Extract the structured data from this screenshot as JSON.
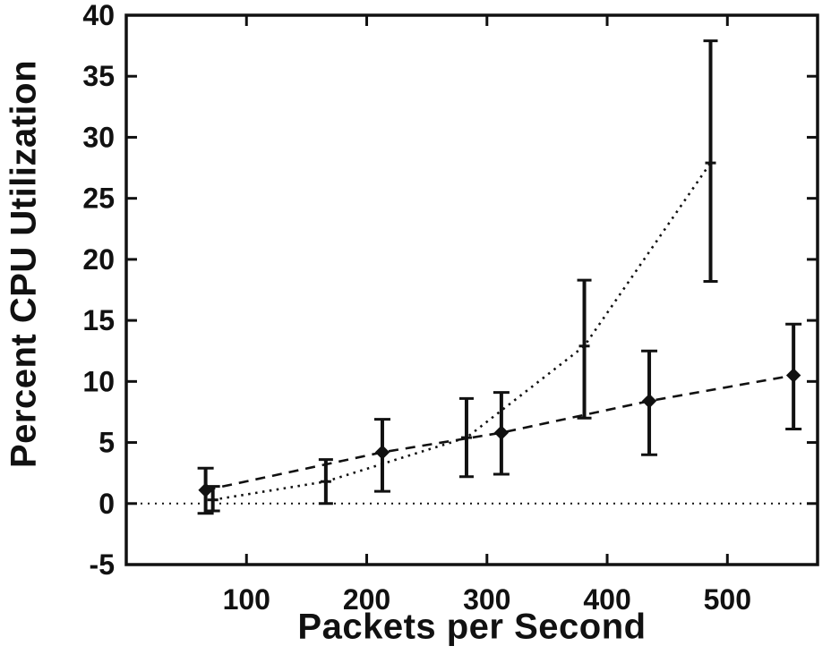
{
  "figure": {
    "background": "#ffffff",
    "ink_color": "#111111"
  },
  "chart_data": {
    "type": "line",
    "title": "",
    "xlabel": "Packets per Second",
    "ylabel": "Percent CPU Utilization",
    "xlim": [
      0,
      575
    ],
    "ylim": [
      -5,
      40
    ],
    "x_ticks": [
      100,
      200,
      300,
      400,
      500
    ],
    "y_ticks": [
      -5,
      0,
      5,
      10,
      15,
      20,
      25,
      30,
      35,
      40
    ],
    "grid": false,
    "legend_position": "none",
    "zero_reference_line": {
      "y": 0,
      "style": "dotted"
    },
    "series": [
      {
        "name": "dashed-diamond-series",
        "line_style": "dashed",
        "marker": "diamond",
        "error_bars": true,
        "x": [
          66,
          213,
          312,
          435,
          555
        ],
        "y": [
          1.1,
          4.2,
          5.8,
          8.4,
          10.5
        ],
        "y_err_low": [
          -0.8,
          1.0,
          2.4,
          4.0,
          6.1
        ],
        "y_err_high": [
          2.9,
          6.9,
          9.1,
          12.5,
          14.7
        ]
      },
      {
        "name": "dotted-tick-series",
        "line_style": "dotted",
        "marker": "tick",
        "error_bars": true,
        "x": [
          72,
          166,
          283,
          381,
          486
        ],
        "y": [
          0.3,
          1.8,
          5.4,
          12.9,
          27.9
        ],
        "y_err_low": [
          -0.6,
          0.0,
          2.2,
          7.0,
          18.2
        ],
        "y_err_high": [
          1.4,
          3.6,
          8.6,
          18.3,
          37.9
        ]
      }
    ]
  }
}
